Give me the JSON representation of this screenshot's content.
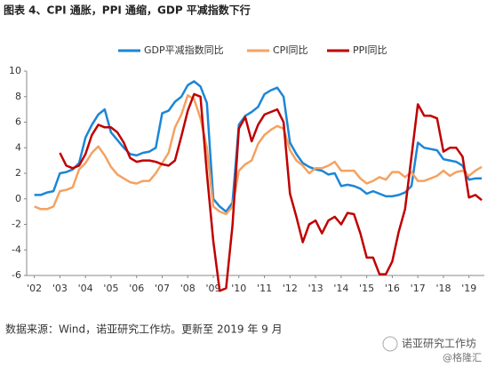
{
  "chart_data": {
    "type": "line",
    "title": "图表 4、CPI 通胀，PPI 通缩，GDP 平减指数下行",
    "source": "数据来源：Wind，诺亚研究工作坊。更新至 2019 年 9 月",
    "watermark": "诺亚研究工作坊",
    "watermark2": "@格隆汇",
    "x": [
      2002,
      2002.25,
      2002.5,
      2002.75,
      2003,
      2003.25,
      2003.5,
      2003.75,
      2004,
      2004.25,
      2004.5,
      2004.75,
      2005,
      2005.25,
      2005.5,
      2005.75,
      2006,
      2006.25,
      2006.5,
      2006.75,
      2007,
      2007.25,
      2007.5,
      2007.75,
      2008,
      2008.25,
      2008.5,
      2008.75,
      2009,
      2009.25,
      2009.5,
      2009.75,
      2010,
      2010.25,
      2010.5,
      2010.75,
      2011,
      2011.25,
      2011.5,
      2011.75,
      2012,
      2012.25,
      2012.5,
      2012.75,
      2013,
      2013.25,
      2013.5,
      2013.75,
      2014,
      2014.25,
      2014.5,
      2014.75,
      2015,
      2015.25,
      2015.5,
      2015.75,
      2016,
      2016.25,
      2016.5,
      2016.75,
      2017,
      2017.25,
      2017.5,
      2017.75,
      2018,
      2018.25,
      2018.5,
      2018.75,
      2019,
      2019.25,
      2019.5
    ],
    "series": [
      {
        "name": "GDP平减指数同比",
        "color": "#1c86d6",
        "values": [
          0.3,
          0.3,
          0.5,
          0.6,
          2.0,
          2.1,
          2.3,
          2.8,
          4.8,
          5.8,
          6.6,
          7.0,
          5.2,
          4.6,
          4.0,
          3.5,
          3.4,
          3.6,
          3.7,
          4.0,
          6.7,
          6.9,
          7.6,
          8.0,
          8.9,
          9.2,
          8.8,
          7.5,
          0.0,
          -0.6,
          -1.0,
          -0.3,
          5.8,
          6.5,
          6.8,
          7.2,
          8.2,
          8.5,
          8.7,
          8.0,
          4.4,
          3.5,
          2.8,
          2.5,
          2.3,
          2.2,
          1.9,
          2.0,
          1.0,
          1.1,
          1.0,
          0.8,
          0.4,
          0.6,
          0.4,
          0.2,
          0.2,
          0.3,
          0.5,
          1.0,
          4.4,
          4.0,
          3.9,
          3.8,
          3.1,
          3.0,
          2.9,
          2.6,
          1.5,
          1.6,
          1.6
        ]
      },
      {
        "name": "CPI同比",
        "color": "#f4a261",
        "values": [
          -0.6,
          -0.8,
          -0.8,
          -0.6,
          0.6,
          0.7,
          0.9,
          2.3,
          2.8,
          3.6,
          4.1,
          3.4,
          2.5,
          1.9,
          1.6,
          1.3,
          1.2,
          1.4,
          1.4,
          2.0,
          2.8,
          3.6,
          5.6,
          6.6,
          8.1,
          7.8,
          6.3,
          4.0,
          -0.6,
          -1.0,
          -1.2,
          -0.6,
          2.2,
          2.7,
          3.0,
          4.3,
          5.0,
          5.4,
          5.7,
          5.5,
          3.8,
          3.0,
          2.6,
          2.0,
          2.4,
          2.4,
          2.6,
          2.9,
          2.2,
          2.2,
          2.2,
          1.6,
          1.2,
          1.4,
          1.7,
          1.5,
          2.1,
          2.1,
          1.7,
          2.1,
          1.4,
          1.4,
          1.6,
          1.8,
          2.2,
          1.8,
          2.1,
          2.2,
          1.8,
          2.2,
          2.5
        ]
      },
      {
        "name": "PPI同比",
        "color": "#c00000",
        "values": [
          null,
          null,
          null,
          null,
          3.6,
          2.6,
          2.4,
          2.6,
          3.5,
          5.0,
          5.8,
          5.6,
          5.6,
          5.2,
          4.4,
          3.2,
          2.9,
          3.0,
          3.0,
          2.9,
          2.7,
          2.6,
          3.0,
          4.9,
          6.9,
          8.2,
          8.0,
          2.0,
          -3.3,
          -7.2,
          -7.0,
          -2.1,
          5.5,
          6.4,
          4.5,
          5.8,
          6.6,
          6.8,
          7.0,
          6.0,
          0.4,
          -1.4,
          -3.4,
          -2.0,
          -1.7,
          -2.7,
          -1.7,
          -1.4,
          -2.0,
          -1.1,
          -1.2,
          -2.7,
          -4.6,
          -4.6,
          -5.9,
          -5.9,
          -4.9,
          -2.6,
          -0.8,
          3.3,
          7.4,
          6.5,
          6.5,
          6.3,
          3.7,
          4.0,
          4.0,
          3.3,
          0.1,
          0.3,
          -0.1
        ]
      }
    ],
    "xlim": [
      2001.7,
      2019.6
    ],
    "xticks": [
      {
        "value": 2002,
        "label": "'02"
      },
      {
        "value": 2003,
        "label": "'03"
      },
      {
        "value": 2004,
        "label": "'04"
      },
      {
        "value": 2005,
        "label": "'05"
      },
      {
        "value": 2006,
        "label": "'06"
      },
      {
        "value": 2007,
        "label": "'07"
      },
      {
        "value": 2008,
        "label": "'08"
      },
      {
        "value": 2009,
        "label": "'09"
      },
      {
        "value": 2010,
        "label": "'10"
      },
      {
        "value": 2011,
        "label": "'11"
      },
      {
        "value": 2012,
        "label": "'12"
      },
      {
        "value": 2013,
        "label": "'13"
      },
      {
        "value": 2014,
        "label": "'14"
      },
      {
        "value": 2015,
        "label": "'15"
      },
      {
        "value": 2016,
        "label": "'16"
      },
      {
        "value": 2017,
        "label": "'17"
      },
      {
        "value": 2018,
        "label": "'18"
      },
      {
        "value": 2019,
        "label": "'19"
      }
    ],
    "ylim": [
      -6,
      10
    ],
    "yticks": [
      -6,
      -4,
      -2,
      0,
      2,
      4,
      6,
      8,
      10
    ]
  }
}
